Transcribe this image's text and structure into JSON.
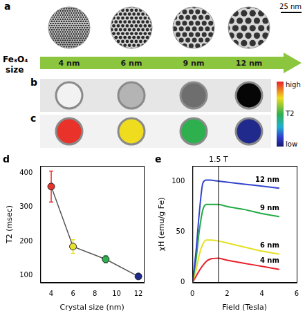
{
  "figure": {
    "panel_a": {
      "label": "a",
      "scale_bar": "25 nm"
    },
    "size_arrow": {
      "title": "Fe₃O₄ size",
      "sizes": [
        "4 nm",
        "6 nm",
        "9 nm",
        "12 nm"
      ]
    },
    "panel_b": {
      "label": "b",
      "colors": [
        "#f2f2f2",
        "#b4b4b4",
        "#6e6e6e",
        "#060606"
      ]
    },
    "panel_c": {
      "label": "c",
      "colors": [
        "#e8322a",
        "#f0dc1e",
        "#2fb04f",
        "#202a8c"
      ]
    },
    "colorbar": {
      "labels": [
        "high",
        "T2",
        "low"
      ]
    }
  },
  "chart_data": [
    {
      "panel": "d",
      "type": "scatter",
      "x_label": "Crystal size (nm)",
      "y_label": "T2 (msec)",
      "x": [
        4,
        6,
        9,
        12
      ],
      "values": [
        360,
        185,
        148,
        98
      ],
      "errors": [
        45,
        20,
        10,
        5
      ],
      "colors": [
        "#e8322a",
        "#e8e030",
        "#2fb04f",
        "#202a8c"
      ],
      "color": "#555555",
      "marker": "circle",
      "line_style": "solid",
      "xlim": [
        3,
        12.5
      ],
      "xticks": [
        4,
        6,
        8,
        10,
        12
      ],
      "ylim": [
        80,
        420
      ],
      "yticks": [
        100,
        200,
        300,
        400
      ],
      "grid": false
    },
    {
      "panel": "e",
      "type": "line",
      "x_label": "Field (Tesla)",
      "y_label": "χH (emu/g Fe)",
      "x": [
        0,
        0.2,
        0.4,
        0.6,
        0.8,
        1.0,
        1.5,
        2,
        3,
        4,
        5
      ],
      "series": [
        {
          "name": "12 nm",
          "color": "#3344cc",
          "values": [
            0,
            30,
            70,
            98,
            101,
            101,
            100,
            99,
            97,
            95,
            93
          ]
        },
        {
          "name": "9 nm",
          "color": "#22aa44",
          "values": [
            0,
            22,
            52,
            72,
            77,
            77,
            77,
            75,
            72,
            68,
            65
          ]
        },
        {
          "name": "6 nm",
          "color": "#e6e020",
          "values": [
            0,
            12,
            28,
            38,
            42,
            42,
            41,
            39,
            35,
            31,
            28
          ]
        },
        {
          "name": "4 nm",
          "color": "#e8202a",
          "values": [
            0,
            6,
            12,
            17,
            21,
            23,
            24,
            22,
            19,
            16,
            13
          ]
        }
      ],
      "annotations": [
        {
          "x": 1.5,
          "text": "1.5 T"
        }
      ],
      "xlim": [
        0,
        6
      ],
      "xticks": [
        0,
        2,
        4,
        6
      ],
      "ylim": [
        0,
        115
      ],
      "yticks": [
        0,
        50,
        100
      ],
      "grid": false
    }
  ]
}
